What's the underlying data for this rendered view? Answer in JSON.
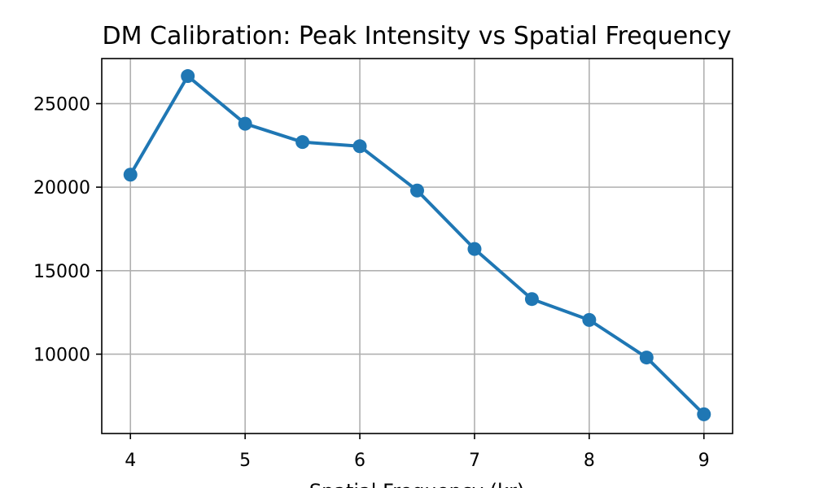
{
  "chart_data": {
    "type": "line",
    "title": "DM Calibration: Peak Intensity vs Spatial Frequency",
    "xlabel": "Spatial Frequency (kr)",
    "ylabel": "",
    "x": [
      4,
      4.5,
      5,
      5.5,
      6,
      6.5,
      7,
      7.5,
      8,
      8.5,
      9
    ],
    "series": [
      {
        "values": [
          20750,
          26650,
          23800,
          22700,
          22450,
          19800,
          16300,
          13300,
          12050,
          9800,
          6400
        ],
        "color": "#1f77b4"
      }
    ],
    "xlim": [
      3.75,
      9.25
    ],
    "ylim": [
      5250,
      27700
    ],
    "xticks": [
      4,
      5,
      6,
      7,
      8,
      9
    ],
    "yticks": [
      10000,
      15000,
      20000,
      25000
    ],
    "grid": true,
    "grid_color": "#b0b0b0"
  }
}
